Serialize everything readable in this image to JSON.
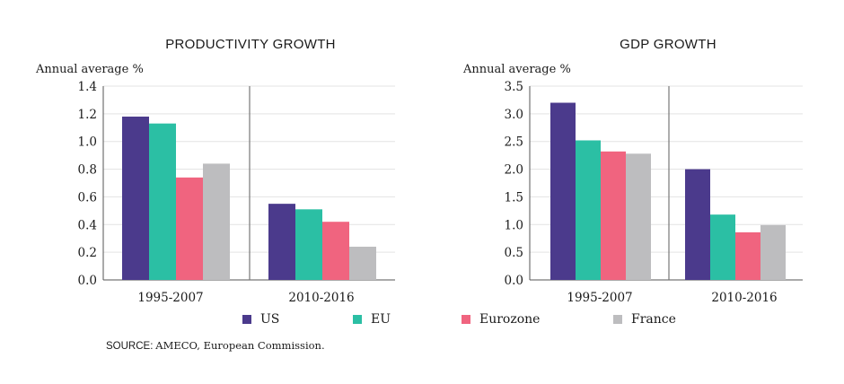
{
  "legend": [
    {
      "name": "US",
      "color": "#4b3a8c"
    },
    {
      "name": "EU",
      "color": "#2bbfa4"
    },
    {
      "name": "Eurozone",
      "color": "#f0647f"
    },
    {
      "name": "France",
      "color": "#bdbdbf"
    }
  ],
  "source": {
    "label": "SOURCE:",
    "text": "AMECO, European Commission."
  },
  "chart_data": [
    {
      "type": "bar",
      "title": "PRODUCTIVITY GROWTH",
      "ylabel": "Annual average %",
      "categories": [
        "1995-2007",
        "2010-2016"
      ],
      "ylim": [
        0,
        1.4
      ],
      "yticks": [
        "0.0",
        "0.2",
        "0.4",
        "0.6",
        "0.8",
        "1.0",
        "1.2",
        "1.4"
      ],
      "grid": true,
      "series": [
        {
          "name": "US",
          "color": "#4b3a8c",
          "values": [
            1.18,
            0.55
          ]
        },
        {
          "name": "EU",
          "color": "#2bbfa4",
          "values": [
            1.13,
            0.51
          ]
        },
        {
          "name": "Eurozone",
          "color": "#f0647f",
          "values": [
            0.74,
            0.42
          ]
        },
        {
          "name": "France",
          "color": "#bdbdbf",
          "values": [
            0.84,
            0.24
          ]
        }
      ]
    },
    {
      "type": "bar",
      "title": "GDP GROWTH",
      "ylabel": "Annual average %",
      "categories": [
        "1995-2007",
        "2010-2016"
      ],
      "ylim": [
        0,
        3.5
      ],
      "yticks": [
        "0.0",
        "0.5",
        "1.0",
        "1.5",
        "2.0",
        "2.5",
        "3.0",
        "3.5"
      ],
      "grid": true,
      "series": [
        {
          "name": "US",
          "color": "#4b3a8c",
          "values": [
            3.2,
            2.0
          ]
        },
        {
          "name": "EU",
          "color": "#2bbfa4",
          "values": [
            2.52,
            1.18
          ]
        },
        {
          "name": "Eurozone",
          "color": "#f0647f",
          "values": [
            2.32,
            0.86
          ]
        },
        {
          "name": "France",
          "color": "#bdbdbf",
          "values": [
            2.28,
            0.99
          ]
        }
      ]
    }
  ]
}
